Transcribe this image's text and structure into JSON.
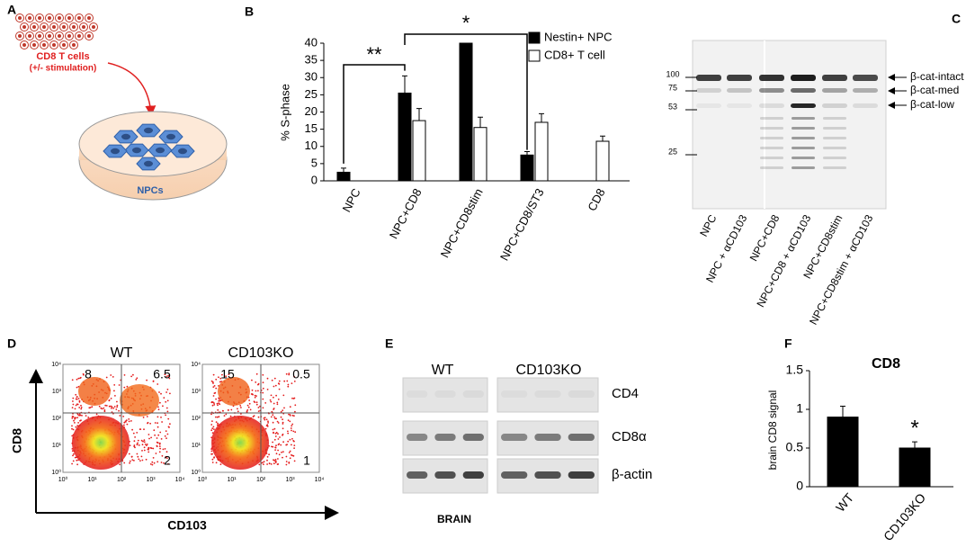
{
  "panel_labels": [
    "A",
    "B",
    "C",
    "D",
    "E",
    "F"
  ],
  "panel_a": {
    "cells_label": "CD8 T cells",
    "stim_label": "(+/- stimulation)",
    "dish_label": "NPCs"
  },
  "chart_data": [
    {
      "type": "bar",
      "y_label": "% S-phase",
      "categories": [
        "NPC",
        "NPC+CD8",
        "NPC+CD8stim",
        "NPC+CD8/ST3",
        "CD8"
      ],
      "series": [
        {
          "name": "Nestin+ NPC",
          "color": "#000000",
          "values": [
            2.5,
            25.5,
            40,
            7.5,
            null
          ],
          "errors": [
            1.2,
            5,
            null,
            1,
            null
          ]
        },
        {
          "name": "CD8+ T cell",
          "color": "#ffffff",
          "values": [
            null,
            17.5,
            15.5,
            17,
            11.5
          ],
          "errors": [
            null,
            3.5,
            3,
            2.5,
            1.5
          ]
        }
      ],
      "ylim": [
        0,
        40
      ],
      "yticks": [
        0,
        5,
        10,
        15,
        20,
        25,
        30,
        35,
        40
      ],
      "annotations": [
        "**",
        "*"
      ],
      "legend": "top-right"
    },
    {
      "type": "bar",
      "title": "CD8",
      "y_label": "brain CD8 signal",
      "categories": [
        "WT",
        "CD103KO"
      ],
      "values": [
        0.9,
        0.5
      ],
      "errors": [
        0.14,
        0.08
      ],
      "color": "#000000",
      "ylim": [
        0,
        1.5
      ],
      "yticks": [
        0,
        0.5,
        1,
        1.5
      ],
      "annotations": [
        "*"
      ]
    }
  ],
  "panel_c": {
    "markers": [
      "100",
      "75",
      "53",
      "25"
    ],
    "bands": [
      "β-cat-intact",
      "β-cat-med",
      "β-cat-low"
    ],
    "lanes": [
      "NPC",
      "NPC + αCD103",
      "NPC+CD8",
      "NPC+CD8 + αCD103",
      "NPC+CD8stim",
      "NPC+CD8stim + αCD103"
    ]
  },
  "panel_d": {
    "y_axis": "CD8",
    "x_axis": "CD103",
    "ticks": [
      "10⁰",
      "10¹",
      "10²",
      "10³",
      "10⁴"
    ],
    "plots": [
      {
        "title": "WT",
        "quadrants": [
          "8",
          "6.5",
          "2"
        ]
      },
      {
        "title": "CD103KO",
        "quadrants": [
          "15",
          "0.5",
          "1"
        ]
      }
    ]
  },
  "panel_e": {
    "groups": [
      "WT",
      "CD103KO"
    ],
    "rows": [
      "CD4",
      "CD8α",
      "β-actin"
    ],
    "tissue": "BRAIN"
  }
}
